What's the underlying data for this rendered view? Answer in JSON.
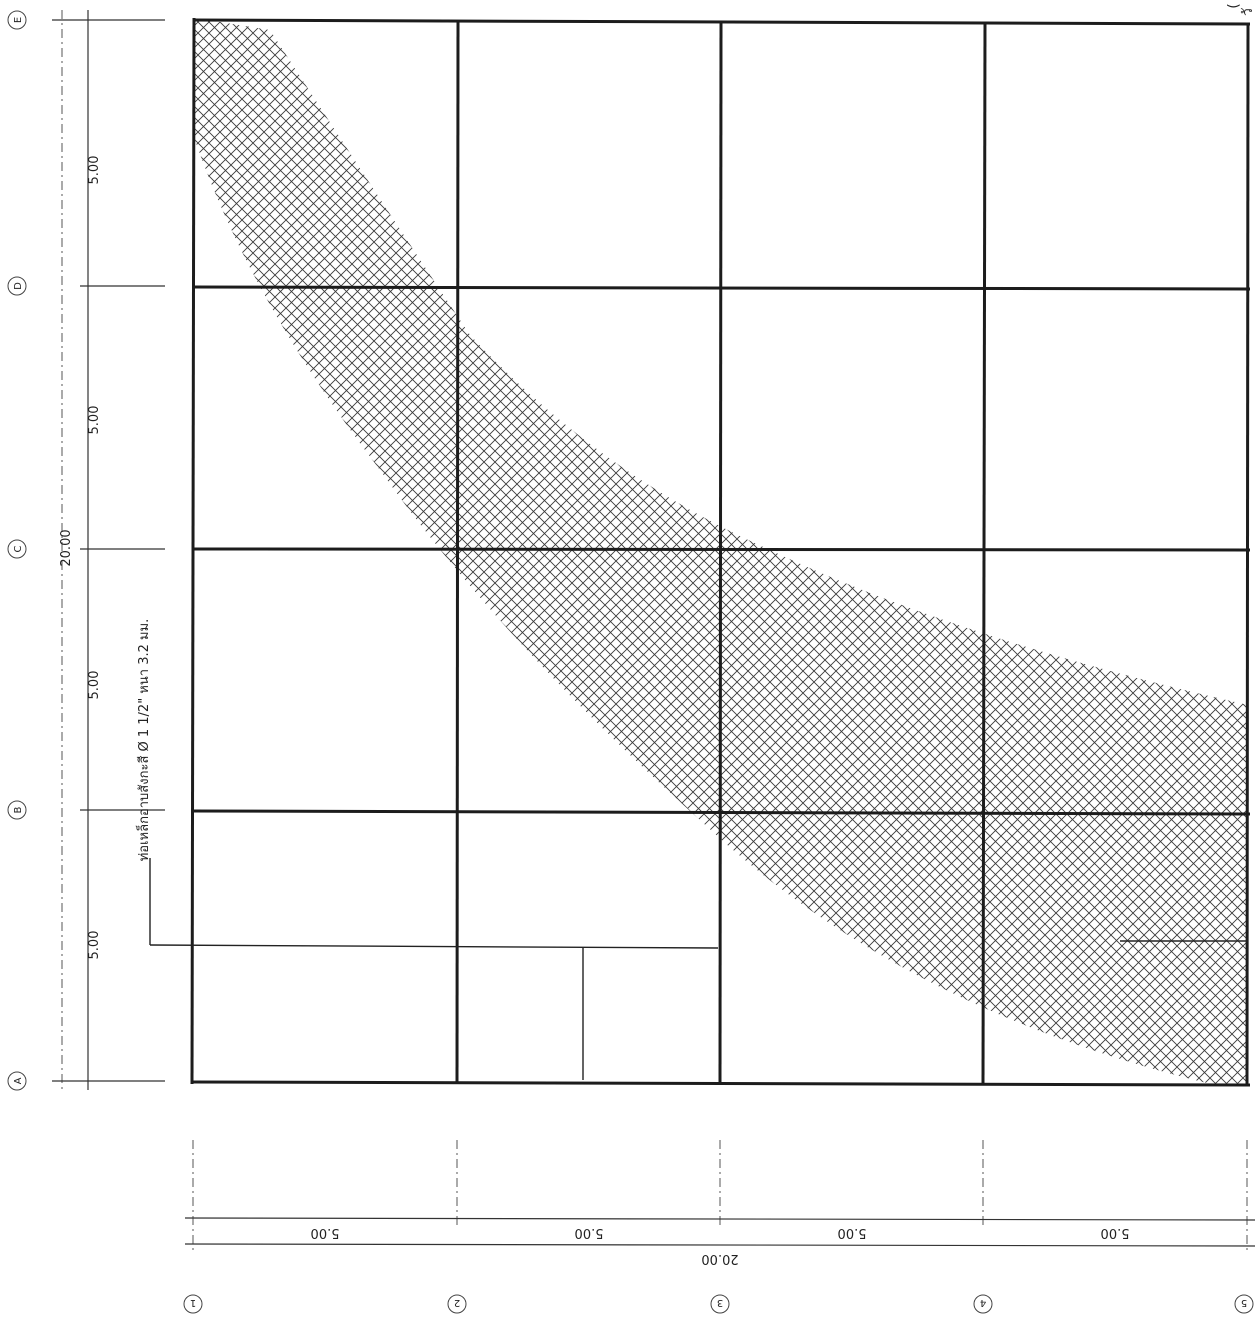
{
  "plan": {
    "column_axes": [
      "1",
      "2",
      "3",
      "4",
      "5"
    ],
    "row_axes": [
      "A",
      "B",
      "C",
      "D",
      "E"
    ],
    "bay_dimension_label": "5.00",
    "bay_dimension_label_bottom": "5.00",
    "total_dimension_label": "20.00",
    "left_total_label": "20.00",
    "vertical_bay_labels": [
      "5.00",
      "5.00",
      "5.00",
      "5.00"
    ],
    "horizontal_bay_labels": [
      "5.00",
      "5.00",
      "5.00",
      "5.00"
    ],
    "pipe_note": "ท่อเหล็กอาบสังกะสี Ø 1 1/2\" หนา 3.2 มม.",
    "corner_note_1": "(",
    "corner_note_2": "วั"
  }
}
